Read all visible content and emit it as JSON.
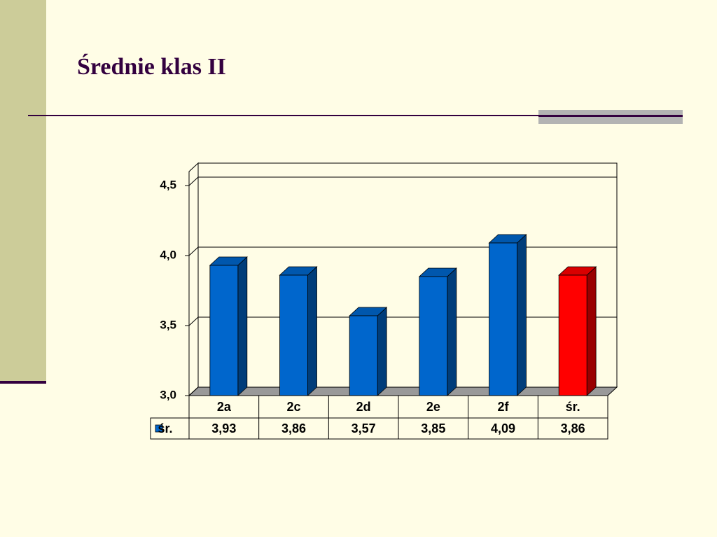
{
  "title": "Średnie klas II",
  "chart_data": {
    "type": "bar3d",
    "categories": [
      "2a",
      "2c",
      "2d",
      "2e",
      "2f",
      "śr."
    ],
    "series": [
      {
        "name": "śr.",
        "color": "#0066cc",
        "colors": [
          "#0066cc",
          "#0066cc",
          "#0066cc",
          "#0066cc",
          "#0066cc",
          "#ff0000"
        ],
        "values": [
          3.93,
          3.86,
          3.57,
          3.85,
          4.09,
          3.86
        ],
        "value_labels": [
          "3,93",
          "3,86",
          "3,57",
          "3,85",
          "4,09",
          "3,86"
        ]
      }
    ],
    "ylim": [
      3,
      4.6
    ],
    "yticks": [
      {
        "value": 3,
        "label": "3,0"
      },
      {
        "value": 3.5,
        "label": "3,5"
      },
      {
        "value": 4,
        "label": "4,0"
      },
      {
        "value": 4.5,
        "label": "4,5"
      }
    ],
    "grid": true,
    "data_table": true
  }
}
